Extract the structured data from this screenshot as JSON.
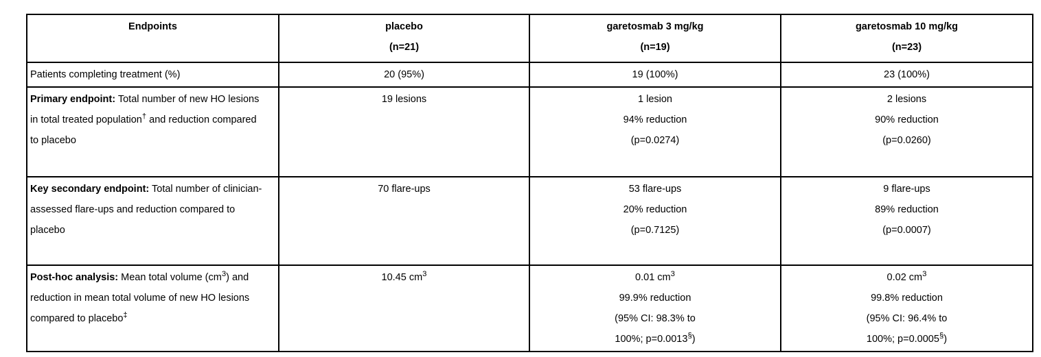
{
  "page": {
    "background_color": "#ffffff",
    "text_color": "#000000",
    "border_color": "#000000"
  },
  "table": {
    "headers": [
      {
        "lines": [
          "Endpoints"
        ]
      },
      {
        "lines": [
          "placebo",
          "(n=21)"
        ]
      },
      {
        "lines": [
          "garetosmab 3 mg/kg",
          "(n=19)"
        ]
      },
      {
        "lines": [
          "garetosmab 10 mg/kg",
          "(n=23)"
        ]
      }
    ],
    "rows": [
      {
        "id": "patients-completing-treatment",
        "label": [
          [
            {
              "t": "Patients completing treatment (%)"
            }
          ]
        ],
        "cells": [
          [
            [
              {
                "t": "20 (95%)"
              }
            ]
          ],
          [
            [
              {
                "t": "19 (100%)"
              }
            ]
          ],
          [
            [
              {
                "t": "23 (100%)"
              }
            ]
          ]
        ]
      },
      {
        "id": "primary-endpoint",
        "label": [
          [
            {
              "t": "Primary endpoint:",
              "b": true
            },
            {
              "t": " Total number of new HO lesions"
            }
          ],
          [
            {
              "t": "in total treated population"
            },
            {
              "t": "†",
              "s": true
            },
            {
              "t": " and reduction compared"
            }
          ],
          [
            {
              "t": "to placebo"
            }
          ]
        ],
        "cells": [
          [
            [
              {
                "t": "19 lesions"
              }
            ]
          ],
          [
            [
              {
                "t": "1 lesion"
              }
            ],
            [
              {
                "t": "94% reduction"
              }
            ],
            [
              {
                "t": "(p=0.0274)"
              }
            ]
          ],
          [
            [
              {
                "t": "2 lesions"
              }
            ],
            [
              {
                "t": "90% reduction"
              }
            ],
            [
              {
                "t": "(p=0.0260)"
              }
            ]
          ]
        ]
      },
      {
        "id": "key-secondary-endpoint",
        "label": [
          [
            {
              "t": "Key secondary endpoint:",
              "b": true
            },
            {
              "t": " Total number of clinician-"
            }
          ],
          [
            {
              "t": "assessed flare-ups and reduction compared to"
            }
          ],
          [
            {
              "t": "placebo"
            }
          ]
        ],
        "cells": [
          [
            [
              {
                "t": "70 flare-ups"
              }
            ]
          ],
          [
            [
              {
                "t": "53 flare-ups"
              }
            ],
            [
              {
                "t": "20% reduction"
              }
            ],
            [
              {
                "t": "(p=0.7125)"
              }
            ]
          ],
          [
            [
              {
                "t": "9 flare-ups"
              }
            ],
            [
              {
                "t": "89% reduction"
              }
            ],
            [
              {
                "t": "(p=0.0007)"
              }
            ]
          ]
        ]
      },
      {
        "id": "post-hoc-analysis",
        "label": [
          [
            {
              "t": "Post-hoc analysis:",
              "b": true
            },
            {
              "t": " Mean total volume (cm"
            },
            {
              "t": "3",
              "s": true
            },
            {
              "t": ") and"
            }
          ],
          [
            {
              "t": "reduction in mean total volume of new HO lesions"
            }
          ],
          [
            {
              "t": "compared to placebo"
            },
            {
              "t": "‡",
              "s": true
            }
          ]
        ],
        "cells": [
          [
            [
              {
                "t": "10.45 cm"
              },
              {
                "t": "3",
                "s": true
              }
            ]
          ],
          [
            [
              {
                "t": "0.01 cm"
              },
              {
                "t": "3",
                "s": true
              }
            ],
            [
              {
                "t": "99.9% reduction"
              }
            ],
            [
              {
                "t": "(95% CI: 98.3% to"
              }
            ],
            [
              {
                "t": "100%; p=0.0013"
              },
              {
                "t": "§",
                "s": true
              },
              {
                "t": ")"
              }
            ]
          ],
          [
            [
              {
                "t": "0.02 cm"
              },
              {
                "t": "3",
                "s": true
              }
            ],
            [
              {
                "t": "99.8% reduction"
              }
            ],
            [
              {
                "t": "(95% CI: 96.4% to"
              }
            ],
            [
              {
                "t": "100%; p=0.0005"
              },
              {
                "t": "§",
                "s": true
              },
              {
                "t": ")"
              }
            ]
          ]
        ]
      }
    ]
  }
}
